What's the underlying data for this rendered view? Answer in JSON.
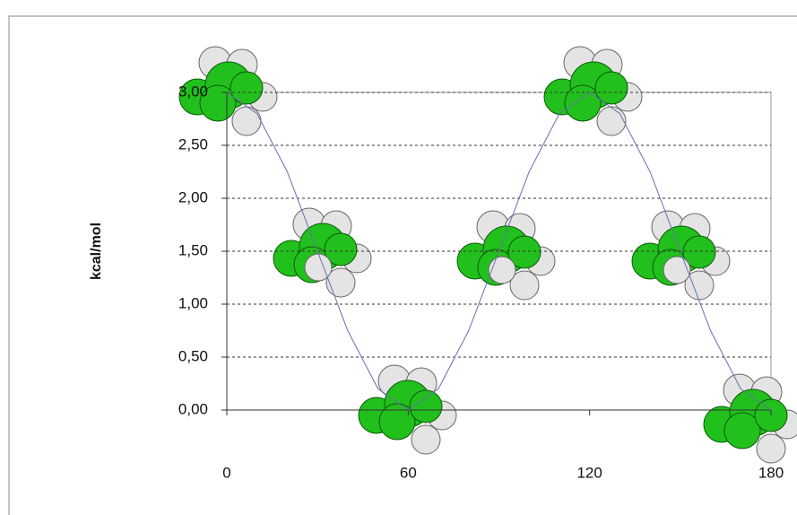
{
  "chart_data": {
    "type": "line",
    "y_label": "kcal/mol",
    "x": [
      0,
      10,
      20,
      30,
      40,
      50,
      60,
      70,
      80,
      90,
      100,
      110,
      120,
      130,
      140,
      150,
      160,
      170,
      180
    ],
    "series": [
      {
        "color": "#6670b0",
        "values": [
          3.0,
          2.8,
          2.25,
          1.5,
          0.75,
          0.2,
          0.0,
          0.2,
          0.75,
          1.5,
          2.25,
          2.8,
          3.0,
          2.8,
          2.25,
          1.5,
          0.75,
          0.2,
          0.0
        ]
      }
    ],
    "xlim": [
      0,
      180
    ],
    "xticks": [
      0,
      60,
      120,
      180
    ],
    "ylim": [
      0,
      3
    ],
    "yticks": [
      {
        "value": 0,
        "label": "0,00"
      },
      {
        "value": 0.5,
        "label": "0,50"
      },
      {
        "value": 1,
        "label": "1,00"
      },
      {
        "value": 1.5,
        "label": "1,50"
      },
      {
        "value": 2,
        "label": "2,00"
      },
      {
        "value": 2.5,
        "label": "2,50"
      },
      {
        "value": 3,
        "label": "3,00"
      }
    ],
    "grid": true
  }
}
